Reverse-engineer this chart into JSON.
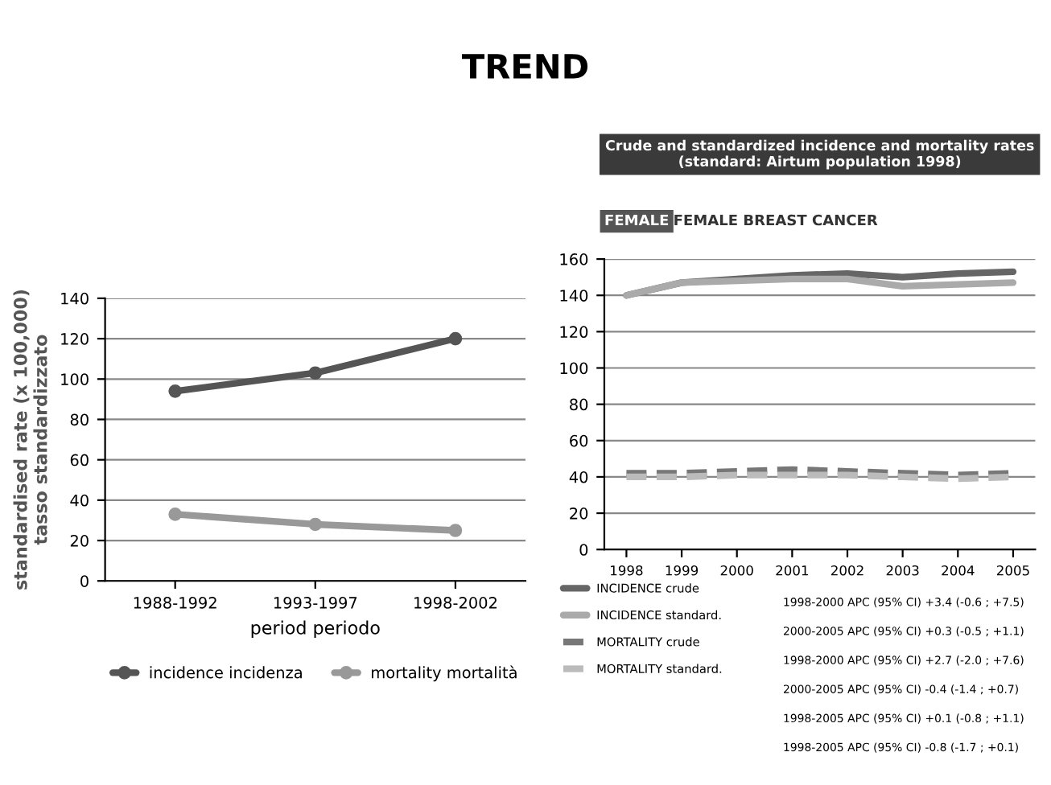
{
  "chart_data": [
    {
      "type": "line",
      "title": "TREND",
      "xlabel": "period periodo",
      "ylabel": "standardised rate (x 100,000)\ntasso standardizzato",
      "categories": [
        "1988-1992",
        "1993-1997",
        "1998-2002"
      ],
      "series": [
        {
          "name": "incidence incidenza",
          "color": "#555555",
          "values": [
            94,
            103,
            120
          ]
        },
        {
          "name": "mortality mortalità",
          "color": "#999999",
          "values": [
            33,
            28,
            25
          ]
        }
      ],
      "ylim": [
        0,
        140
      ],
      "yticks": [
        0,
        20,
        40,
        60,
        80,
        100,
        120,
        140
      ],
      "grid": "y",
      "legend": "bottom",
      "marker": "circle"
    },
    {
      "type": "line",
      "title": "Crude and standardized incidence and mortality rates\n(standard: Airtum population 1998)",
      "subtitle": "FEMALE BREAST CANCER",
      "x": [
        1998,
        1999,
        2000,
        2001,
        2002,
        2003,
        2004,
        2005
      ],
      "series": [
        {
          "name": "INCIDENCE crude",
          "color": "#666666",
          "values": [
            140,
            147,
            149,
            151,
            152,
            150,
            152,
            153
          ],
          "line_style": "solid"
        },
        {
          "name": "INCIDENCE standard.",
          "color": "#aaaaaa",
          "values": [
            140,
            147,
            148,
            149,
            149,
            145,
            146,
            147
          ],
          "line_style": "solid"
        },
        {
          "name": "MORTALITY crude",
          "color": "#777777",
          "values": [
            42,
            42,
            43,
            44,
            43,
            42,
            41,
            42
          ],
          "line_style": "dashed"
        },
        {
          "name": "MORTALITY standard.",
          "color": "#bbbbbb",
          "values": [
            40,
            40,
            41,
            41,
            41,
            40,
            39,
            40
          ],
          "line_style": "dashed"
        }
      ],
      "xlim": [
        1997.6,
        2005.4
      ],
      "xticks": [
        1998,
        1999,
        2000,
        2001,
        2002,
        2003,
        2004,
        2005
      ],
      "ylim": [
        0,
        160
      ],
      "yticks": [
        0,
        20,
        40,
        60,
        80,
        100,
        120,
        140,
        160
      ],
      "grid": "y",
      "legend": "bottom",
      "annotations": [
        "FEMALE",
        "1998-2000 APC (95% CI) +3.4 (-0.6 ; +7.5)",
        "2000-2005 APC (95% CI) +0.3 (-0.5 ; +1.1)",
        "1998-2000 APC (95% CI) +2.7 (-2.0 ; +7.6)",
        "2000-2005 APC (95% CI) -0.4 (-1.4 ; +0.7)",
        "1998-2005 APC (95% CI) +0.1 (-0.8 ; +1.1)",
        "1998-2005 APC (95% CI) -0.8 (-1.7 ; +0.1)"
      ]
    }
  ]
}
